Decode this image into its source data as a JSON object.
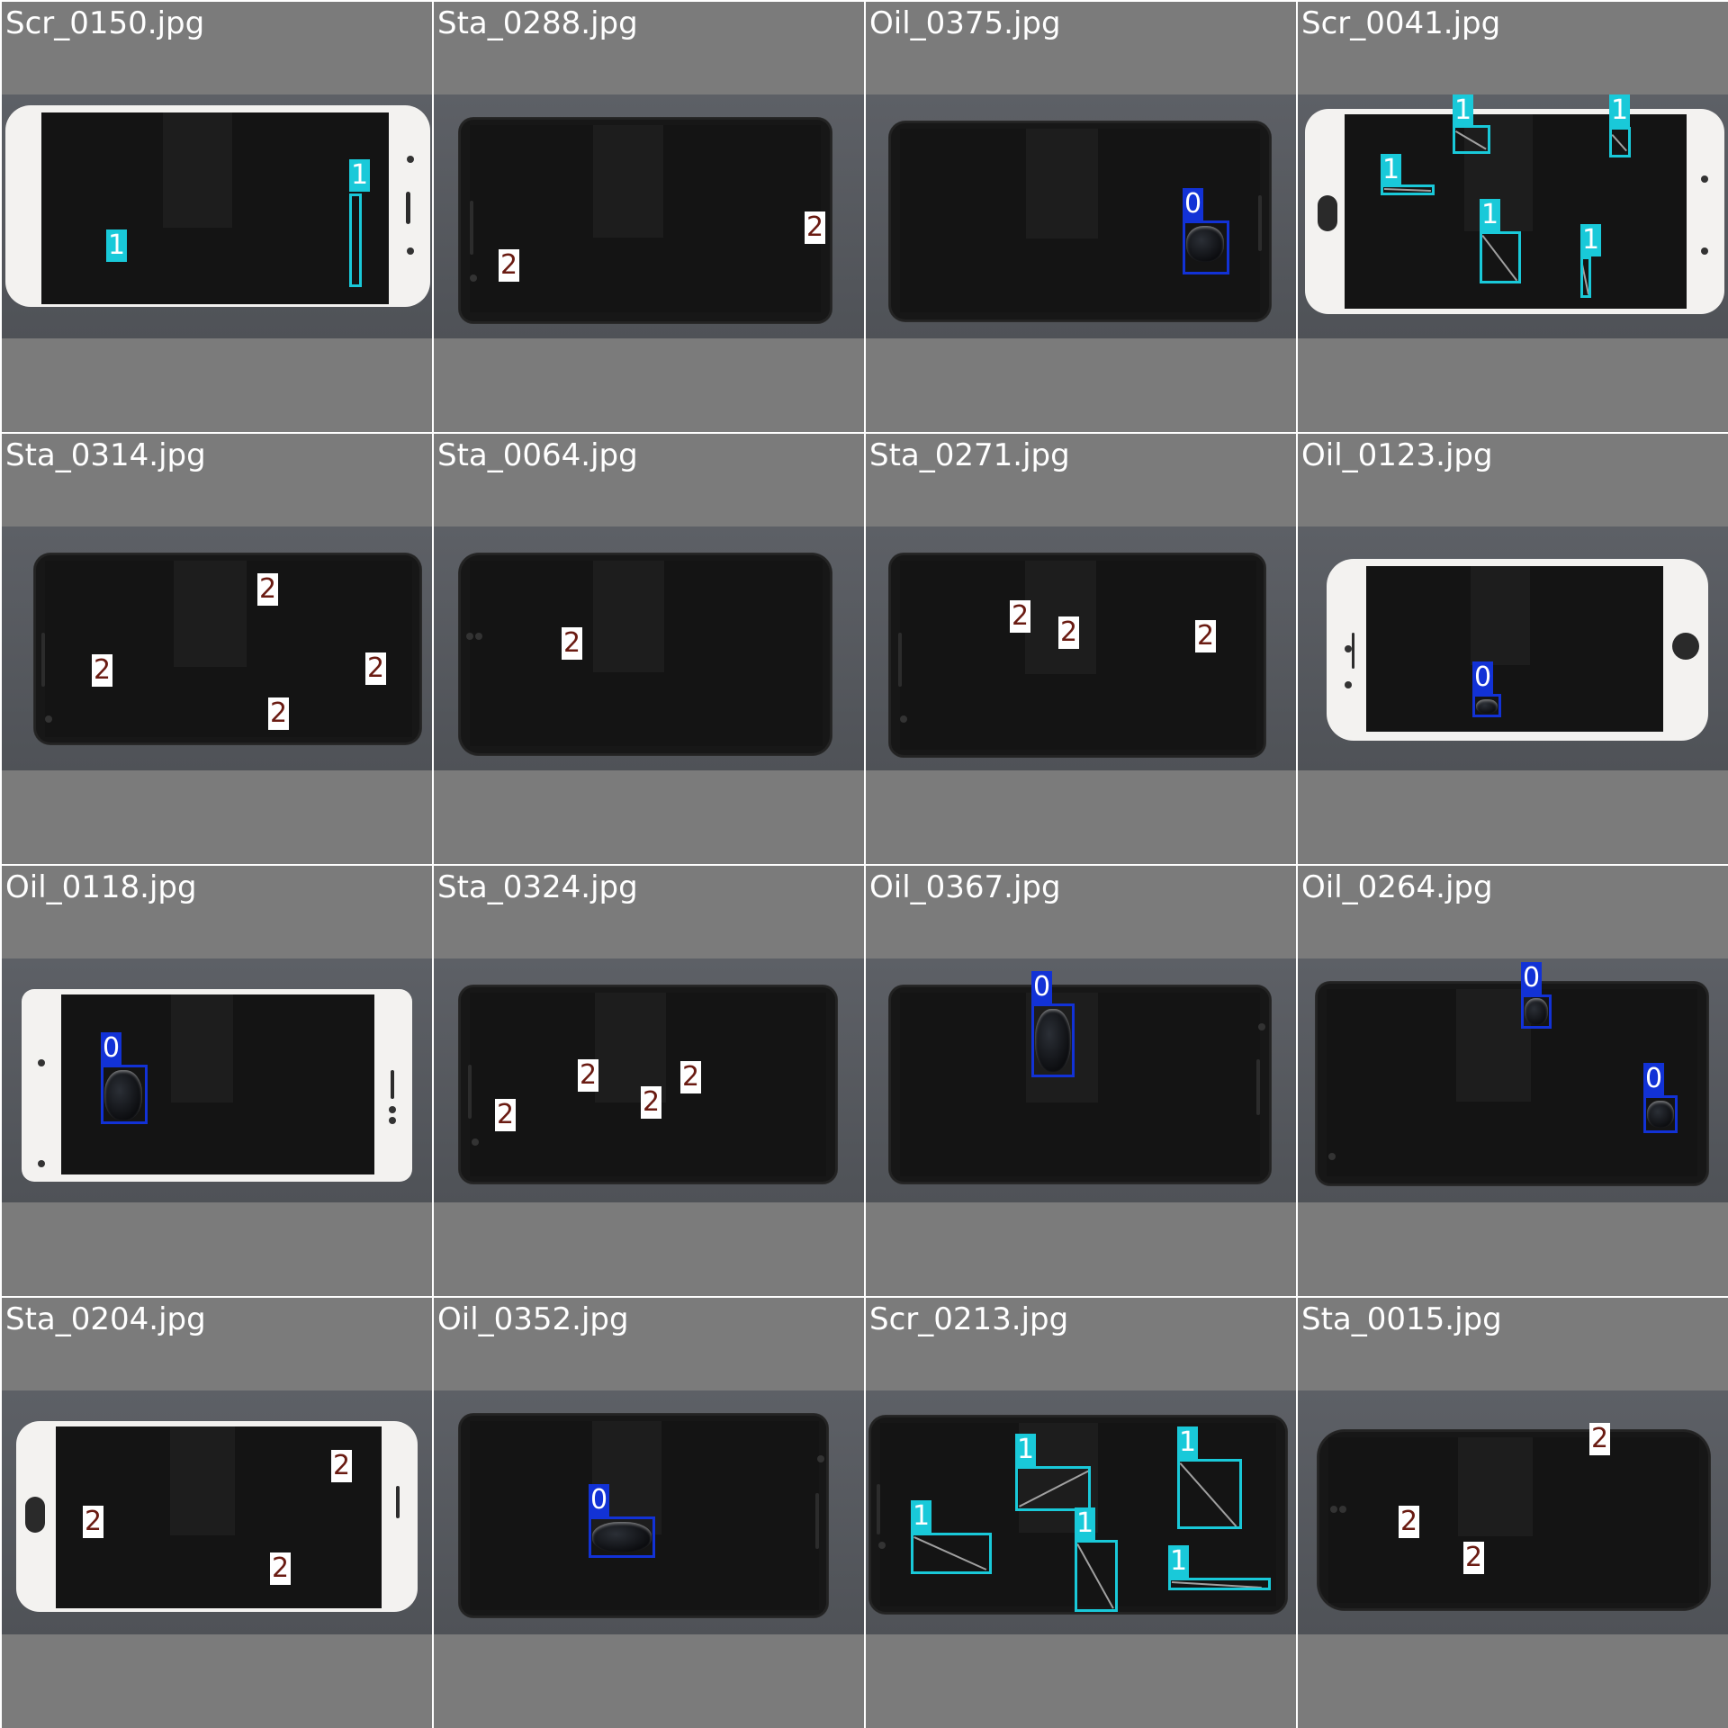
{
  "colors": {
    "class_0": "#1232d6",
    "class_1": "#19c9d9",
    "class_2_bg": "#ffffff",
    "class_2_text": "#6a1b12",
    "tile_background": "#7b7b7b",
    "filename_text": "#ffffff"
  },
  "tiles": [
    {
      "filename": "Scr_0150.jpg",
      "phone": "white",
      "detections": [
        {
          "cls": "1",
          "label": "1"
        },
        {
          "cls": "1",
          "label": "1"
        }
      ]
    },
    {
      "filename": "Sta_0288.jpg",
      "phone": "black",
      "detections": [
        {
          "cls": "2",
          "label": "2"
        },
        {
          "cls": "2",
          "label": "2"
        }
      ]
    },
    {
      "filename": "Oil_0375.jpg",
      "phone": "black",
      "detections": [
        {
          "cls": "0",
          "label": "0"
        }
      ]
    },
    {
      "filename": "Scr_0041.jpg",
      "phone": "white",
      "detections": [
        {
          "cls": "1",
          "label": "1"
        },
        {
          "cls": "1",
          "label": "1"
        },
        {
          "cls": "1",
          "label": "1"
        },
        {
          "cls": "1",
          "label": "1"
        },
        {
          "cls": "1",
          "label": "1"
        }
      ]
    },
    {
      "filename": "Sta_0314.jpg",
      "phone": "black",
      "detections": [
        {
          "cls": "2",
          "label": "2"
        },
        {
          "cls": "2",
          "label": "2"
        },
        {
          "cls": "2",
          "label": "2"
        },
        {
          "cls": "2",
          "label": "2"
        }
      ]
    },
    {
      "filename": "Sta_0064.jpg",
      "phone": "black",
      "detections": [
        {
          "cls": "2",
          "label": "2"
        }
      ]
    },
    {
      "filename": "Sta_0271.jpg",
      "phone": "black",
      "detections": [
        {
          "cls": "2",
          "label": "2"
        },
        {
          "cls": "2",
          "label": "2"
        },
        {
          "cls": "2",
          "label": "2"
        }
      ]
    },
    {
      "filename": "Oil_0123.jpg",
      "phone": "white",
      "detections": [
        {
          "cls": "0",
          "label": "0"
        }
      ]
    },
    {
      "filename": "Oil_0118.jpg",
      "phone": "white",
      "detections": [
        {
          "cls": "0",
          "label": "0"
        }
      ]
    },
    {
      "filename": "Sta_0324.jpg",
      "phone": "black",
      "detections": [
        {
          "cls": "2",
          "label": "2"
        },
        {
          "cls": "2",
          "label": "2"
        },
        {
          "cls": "2",
          "label": "2"
        },
        {
          "cls": "2",
          "label": "2"
        }
      ]
    },
    {
      "filename": "Oil_0367.jpg",
      "phone": "black",
      "detections": [
        {
          "cls": "0",
          "label": "0"
        }
      ]
    },
    {
      "filename": "Oil_0264.jpg",
      "phone": "black",
      "detections": [
        {
          "cls": "0",
          "label": "0"
        },
        {
          "cls": "0",
          "label": "0"
        }
      ]
    },
    {
      "filename": "Sta_0204.jpg",
      "phone": "white",
      "detections": [
        {
          "cls": "2",
          "label": "2"
        },
        {
          "cls": "2",
          "label": "2"
        },
        {
          "cls": "2",
          "label": "2"
        }
      ]
    },
    {
      "filename": "Oil_0352.jpg",
      "phone": "black",
      "detections": [
        {
          "cls": "0",
          "label": "0"
        }
      ]
    },
    {
      "filename": "Scr_0213.jpg",
      "phone": "black",
      "detections": [
        {
          "cls": "1",
          "label": "1"
        },
        {
          "cls": "1",
          "label": "1"
        },
        {
          "cls": "1",
          "label": "1"
        },
        {
          "cls": "1",
          "label": "1"
        },
        {
          "cls": "1",
          "label": "1"
        }
      ]
    },
    {
      "filename": "Sta_0015.jpg",
      "phone": "black",
      "detections": [
        {
          "cls": "2",
          "label": "2"
        },
        {
          "cls": "2",
          "label": "2"
        },
        {
          "cls": "2",
          "label": "2"
        }
      ]
    }
  ]
}
